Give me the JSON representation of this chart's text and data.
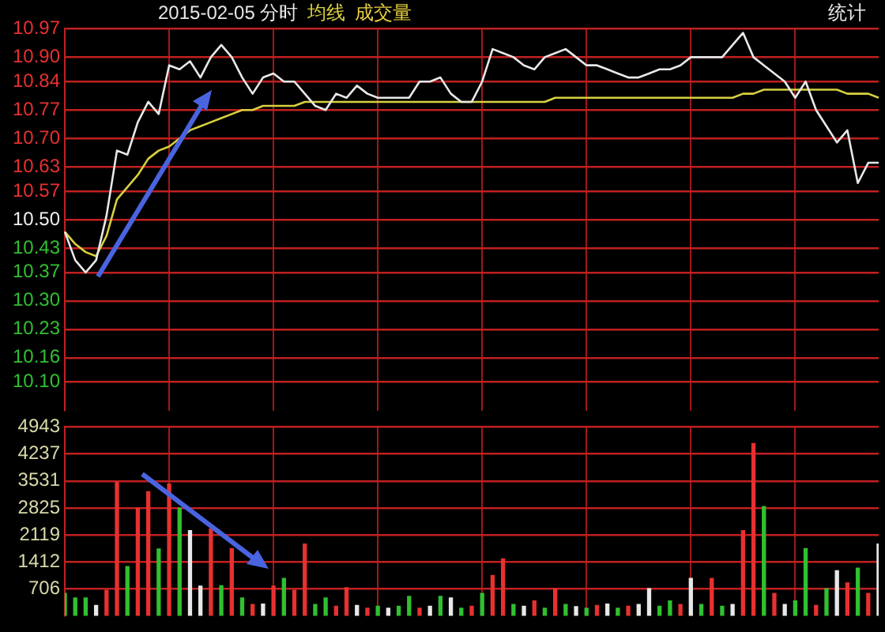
{
  "chart_data": [
    {
      "type": "line",
      "title": "2015-02-05 分时",
      "annotations": [
        "统计"
      ],
      "grid": true,
      "tick_labels": "y",
      "marker": "none",
      "line_style": "solid",
      "categories": [
        null,
        null,
        null,
        null,
        null,
        null,
        null,
        null,
        null,
        null,
        null,
        null,
        null,
        null,
        null,
        null,
        null,
        null,
        null,
        null,
        null,
        null,
        null,
        null,
        null,
        null,
        null,
        null,
        null,
        null,
        null,
        null,
        null,
        null,
        null,
        null,
        null,
        null,
        null,
        null,
        null,
        null,
        null,
        null,
        null,
        null,
        null,
        null,
        null,
        null,
        null,
        null,
        null,
        null,
        null,
        null,
        null,
        null,
        null,
        null,
        null,
        null,
        null,
        null,
        null,
        null,
        null,
        null,
        null,
        null,
        null,
        null,
        null,
        null,
        null,
        null,
        null,
        null,
        null
      ],
      "ylim": [
        10.03,
        10.97
      ],
      "yticks": [
        {
          "value": 10.1,
          "label": "10.10"
        },
        10.16,
        10.23,
        {
          "value": 10.3,
          "label": "10.30"
        },
        10.37,
        10.43,
        {
          "value": 10.5,
          "label": "10.50"
        },
        10.57,
        10.63,
        {
          "value": 10.7,
          "label": "10.70"
        },
        10.77,
        10.84,
        {
          "value": 10.9,
          "label": "10.90"
        },
        10.97
      ],
      "series": [
        {
          "color": "#e8e8e8",
          "values": [
            10.47,
            10.4,
            10.37,
            10.4,
            10.51,
            10.67,
            10.66,
            10.74,
            10.79,
            10.76,
            10.88,
            10.87,
            10.89,
            10.85,
            10.9,
            10.93,
            10.9,
            10.85,
            10.81,
            10.85,
            10.86,
            10.84,
            10.84,
            10.81,
            10.78,
            10.77,
            10.81,
            10.8,
            10.83,
            10.81,
            10.8,
            10.8,
            10.8,
            10.8,
            10.84,
            10.84,
            10.85,
            10.81,
            10.79,
            10.79,
            10.84,
            10.92,
            10.91,
            10.9,
            10.88,
            10.87,
            10.9,
            10.91,
            10.92,
            10.9,
            10.88,
            10.88,
            10.87,
            10.86,
            10.85,
            10.85,
            10.86,
            10.87,
            10.87,
            10.88,
            10.9,
            10.9,
            10.9,
            10.9,
            10.93,
            10.96,
            10.9,
            10.88,
            10.86,
            10.84,
            10.8,
            10.84,
            10.77,
            10.73,
            10.69,
            10.72,
            10.59,
            10.64,
            10.64
          ]
        },
        {
          "name": "均线",
          "color": "#d8d040",
          "values": [
            10.47,
            10.44,
            10.42,
            10.41,
            10.46,
            10.55,
            10.58,
            10.61,
            10.65,
            10.67,
            10.68,
            10.7,
            10.72,
            10.73,
            10.74,
            10.75,
            10.76,
            10.77,
            10.77,
            10.78,
            10.78,
            10.78,
            10.78,
            10.79,
            10.79,
            10.79,
            10.79,
            10.79,
            10.79,
            10.79,
            10.79,
            10.79,
            10.79,
            10.79,
            10.79,
            10.79,
            10.79,
            10.79,
            10.79,
            10.79,
            10.79,
            10.79,
            10.79,
            10.79,
            10.79,
            10.79,
            10.79,
            10.8,
            10.8,
            10.8,
            10.8,
            10.8,
            10.8,
            10.8,
            10.8,
            10.8,
            10.8,
            10.8,
            10.8,
            10.8,
            10.8,
            10.8,
            10.8,
            10.8,
            10.8,
            10.81,
            10.81,
            10.82,
            10.82,
            10.82,
            10.82,
            10.82,
            10.82,
            10.82,
            10.82,
            10.81,
            10.81,
            10.81,
            10.8
          ]
        }
      ]
    },
    {
      "type": "bar",
      "grid": true,
      "tick_labels": "y",
      "categories": [
        null,
        null,
        null,
        null,
        null,
        null,
        null,
        null,
        null,
        null,
        null,
        null,
        null,
        null,
        null,
        null,
        null,
        null,
        null,
        null,
        null,
        null,
        null,
        null,
        null,
        null,
        null,
        null,
        null,
        null,
        null,
        null,
        null,
        null,
        null,
        null,
        null,
        null,
        null,
        null,
        null,
        null,
        null,
        null,
        null,
        null,
        null,
        null,
        null,
        null,
        null,
        null,
        null,
        null,
        null,
        null,
        null,
        null,
        null,
        null,
        null,
        null,
        null,
        null,
        null,
        null,
        null,
        null,
        null,
        null,
        null,
        null,
        null,
        null,
        null,
        null,
        null,
        null,
        null
      ],
      "ylim": [
        0,
        4943
      ],
      "yticks": [
        706,
        1412,
        2119,
        2825,
        3531,
        4237,
        4943
      ],
      "series": [
        {
          "name": "成交量",
          "color": "#e8d040",
          "values": [
            590,
            470,
            470,
            270,
            670,
            3490,
            1290,
            2820,
            3250,
            1750,
            3450,
            2820,
            2230,
            780,
            2270,
            790,
            1760,
            470,
            300,
            310,
            780,
            980,
            670,
            1880,
            300,
            470,
            250,
            740,
            270,
            200,
            250,
            200,
            250,
            510,
            200,
            250,
            510,
            470,
            200,
            250,
            590,
            1060,
            1490,
            300,
            250,
            390,
            200,
            710,
            300,
            240,
            200,
            270,
            310,
            200,
            250,
            300,
            710,
            250,
            390,
            300,
            980,
            300,
            980,
            250,
            300,
            2230,
            4510,
            2860,
            590,
            300,
            390,
            1760,
            270,
            710,
            1180,
            860,
            1250,
            590,
            1880
          ],
          "colors": [
            "#30c030",
            "#30c030",
            "#30c030",
            "#e8e8e8",
            "#e83030",
            "#e83030",
            "#30c030",
            "#e83030",
            "#e83030",
            "#30c030",
            "#e83030",
            "#30c030",
            "#e8e8e8",
            "#e8e8e8",
            "#e83030",
            "#30c030",
            "#e83030",
            "#30c030",
            "#e83030",
            "#e8e8e8",
            "#e83030",
            "#30c030",
            "#e83030",
            "#e83030",
            "#30c030",
            "#30c030",
            "#e83030",
            "#e83030",
            "#e8e8e8",
            "#e83030",
            "#30c030",
            "#e8e8e8",
            "#30c030",
            "#30c030",
            "#e83030",
            "#e8e8e8",
            "#30c030",
            "#e8e8e8",
            "#30c030",
            "#e83030",
            "#30c030",
            "#e83030",
            "#e83030",
            "#30c030",
            "#e8e8e8",
            "#e83030",
            "#30c030",
            "#e83030",
            "#30c030",
            "#e8e8e8",
            "#30c030",
            "#e83030",
            "#e8e8e8",
            "#30c030",
            "#e83030",
            "#e8e8e8",
            "#e8e8e8",
            "#30c030",
            "#30c030",
            "#e83030",
            "#e8e8e8",
            "#30c030",
            "#e83030",
            "#30c030",
            "#e8e8e8",
            "#e83030",
            "#e83030",
            "#30c030",
            "#e83030",
            "#e8e8e8",
            "#30c030",
            "#30c030",
            "#e83030",
            "#30c030",
            "#e8e8e8",
            "#e83030",
            "#30c030",
            "#e83030",
            "#e8e8e8"
          ]
        }
      ]
    }
  ]
}
